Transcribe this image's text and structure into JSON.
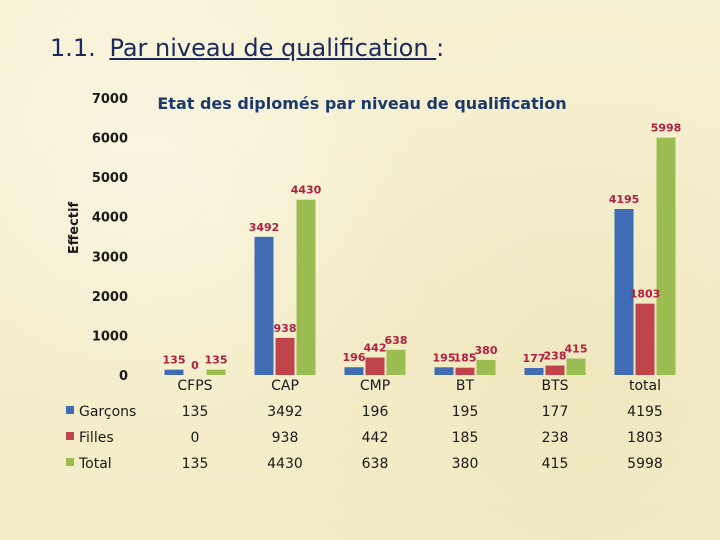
{
  "slide": {
    "number": "1.1.",
    "heading": "Par niveau de qualification ",
    "colon": ":"
  },
  "chart_data": {
    "type": "bar",
    "title": "Etat des diplomés par niveau de qualification",
    "xlabel": "",
    "ylabel": "Effectif",
    "ylim": [
      0,
      7000
    ],
    "yticks": [
      0,
      1000,
      2000,
      3000,
      4000,
      5000,
      6000,
      7000
    ],
    "grid": false,
    "legend": "bottom-left",
    "categories": [
      "CFPS",
      "CAP",
      "CMP",
      "BT",
      "BTS",
      "total"
    ],
    "series": [
      {
        "name": "Garçons",
        "color": "#3f6cb5",
        "values": [
          135,
          3492,
          196,
          195,
          177,
          4195
        ]
      },
      {
        "name": "Filles",
        "color": "#c0454a",
        "values": [
          0,
          938,
          442,
          185,
          238,
          1803
        ]
      },
      {
        "name": "Total",
        "color": "#9cbd51",
        "values": [
          135,
          4430,
          638,
          380,
          415,
          5998
        ]
      }
    ]
  }
}
